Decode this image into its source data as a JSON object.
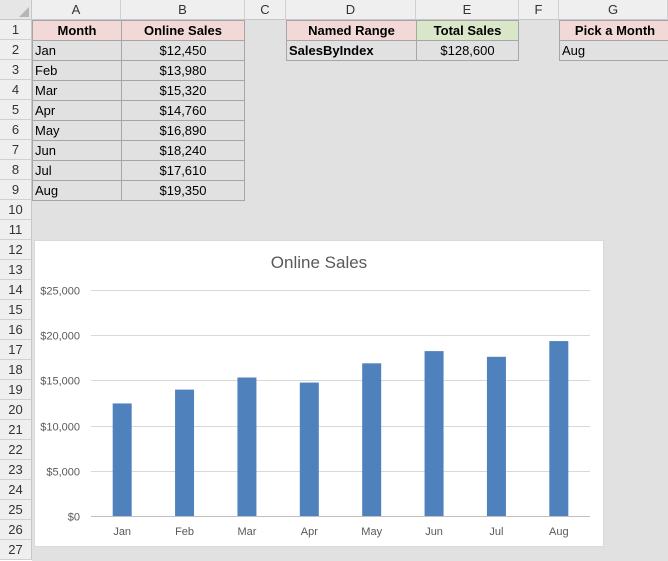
{
  "sheet": {
    "columns": [
      "A",
      "B",
      "C",
      "D",
      "E",
      "F",
      "G"
    ],
    "rows": [
      "1",
      "2",
      "3",
      "4",
      "5",
      "6",
      "7",
      "8",
      "9",
      "10",
      "11",
      "12",
      "13",
      "14",
      "15",
      "16",
      "17",
      "18",
      "19",
      "20",
      "21",
      "22",
      "23",
      "24",
      "25",
      "26",
      "27"
    ]
  },
  "table": {
    "header_month": "Month",
    "header_sales": "Online Sales",
    "rows": [
      {
        "month": "Jan",
        "sales": "$12,450"
      },
      {
        "month": "Feb",
        "sales": "$13,980"
      },
      {
        "month": "Mar",
        "sales": "$15,320"
      },
      {
        "month": "Apr",
        "sales": "$14,760"
      },
      {
        "month": "May",
        "sales": "$16,890"
      },
      {
        "month": "Jun",
        "sales": "$18,240"
      },
      {
        "month": "Jul",
        "sales": "$17,610"
      },
      {
        "month": "Aug",
        "sales": "$19,350"
      }
    ]
  },
  "summary": {
    "header_named_range": "Named Range",
    "header_total_sales": "Total Sales",
    "named_range": "SalesByIndex",
    "total_sales": "$128,600"
  },
  "picker": {
    "header": "Pick a Month",
    "value": "Aug"
  },
  "colors": {
    "bar": "#4f81bd",
    "header_pink": "#f2d9d7",
    "header_green": "#d9e7c8"
  },
  "chart_data": {
    "type": "bar",
    "title": "Online Sales",
    "categories": [
      "Jan",
      "Feb",
      "Mar",
      "Apr",
      "May",
      "Jun",
      "Jul",
      "Aug"
    ],
    "values": [
      12450,
      13980,
      15320,
      14760,
      16890,
      18240,
      17610,
      19350
    ],
    "ylim": [
      0,
      25000
    ],
    "yticks": [
      "$0",
      "$5,000",
      "$10,000",
      "$15,000",
      "$20,000",
      "$25,000"
    ],
    "grid": true,
    "legend": "none"
  }
}
